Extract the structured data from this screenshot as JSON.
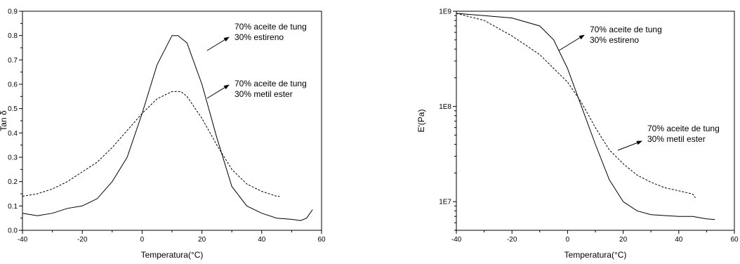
{
  "chart_data": [
    {
      "type": "line",
      "xlabel": "Temperatura(°C)",
      "ylabel": "Tan δ",
      "xlim": [
        -40,
        60
      ],
      "ylim": [
        0.0,
        0.9
      ],
      "xticks": [
        "-40",
        "-20",
        "0",
        "20",
        "40",
        "60"
      ],
      "yticks": [
        "0.0",
        "0.1",
        "0.2",
        "0.3",
        "0.4",
        "0.5",
        "0.6",
        "0.7",
        "0.8",
        "0.9"
      ],
      "series": [
        {
          "style": "solid",
          "x": [
            -40,
            -35,
            -30,
            -25,
            -20,
            -15,
            -10,
            -5,
            0,
            5,
            10,
            12,
            15,
            20,
            25,
            30,
            35,
            40,
            45,
            50,
            53,
            55,
            57
          ],
          "y": [
            0.07,
            0.06,
            0.07,
            0.09,
            0.1,
            0.13,
            0.2,
            0.3,
            0.48,
            0.68,
            0.8,
            0.8,
            0.77,
            0.6,
            0.38,
            0.18,
            0.1,
            0.07,
            0.05,
            0.045,
            0.04,
            0.05,
            0.085
          ]
        },
        {
          "style": "dashed",
          "x": [
            -40,
            -35,
            -30,
            -25,
            -20,
            -15,
            -10,
            -5,
            0,
            5,
            10,
            13,
            15,
            20,
            25,
            30,
            35,
            40,
            45,
            46
          ],
          "y": [
            0.14,
            0.15,
            0.17,
            0.2,
            0.24,
            0.28,
            0.34,
            0.41,
            0.48,
            0.54,
            0.57,
            0.57,
            0.55,
            0.46,
            0.35,
            0.25,
            0.19,
            0.16,
            0.14,
            0.14
          ]
        }
      ],
      "annotations": [
        {
          "lines": [
            "70% aceite de tung",
            "30% estireno"
          ]
        },
        {
          "lines": [
            "70% aceite de tung",
            "30% metil ester"
          ]
        }
      ]
    },
    {
      "type": "line",
      "xlabel": "Temperatura(°C)",
      "ylabel": "E'(Pa)",
      "xlim": [
        -40,
        60
      ],
      "ylim": [
        5000000,
        1000000000
      ],
      "yscale": "log",
      "xticks": [
        "-40",
        "-20",
        "0",
        "20",
        "40",
        "60"
      ],
      "yticks": [
        "1E7",
        "1E8",
        "1E9"
      ],
      "series": [
        {
          "style": "solid",
          "x": [
            -40,
            -30,
            -20,
            -10,
            -5,
            0,
            5,
            10,
            15,
            20,
            25,
            30,
            40,
            45,
            50,
            53
          ],
          "y": [
            950000000,
            900000000,
            850000000,
            700000000,
            500000000,
            250000000,
            100000000,
            40000000,
            17000000,
            10000000,
            8000000,
            7300000,
            7000000,
            7000000,
            6600000,
            6500000
          ]
        },
        {
          "style": "dashed",
          "x": [
            -40,
            -30,
            -20,
            -10,
            0,
            5,
            10,
            15,
            20,
            25,
            30,
            35,
            40,
            45,
            46
          ],
          "y": [
            950000000,
            800000000,
            550000000,
            350000000,
            180000000,
            110000000,
            60000000,
            35000000,
            25000000,
            19000000,
            16000000,
            14000000,
            13000000,
            12000000,
            11000000
          ]
        }
      ],
      "annotations": [
        {
          "lines": [
            "70% aceite de tung",
            "30% estireno"
          ]
        },
        {
          "lines": [
            "70% aceite de tung",
            "30% metil ester"
          ]
        }
      ]
    }
  ]
}
